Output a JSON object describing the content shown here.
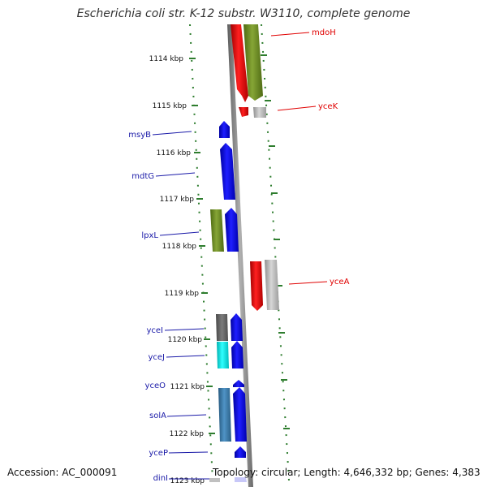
{
  "title": "Escherichia coli str. K-12 substr. W3110, complete genome",
  "accession": "Accession: AC_000091",
  "topology": "Topology: circular; Length: 4,646,332 bp; Genes: 4,383",
  "kbp_labels": [
    "1114 kbp",
    "1115 kbp",
    "1116 kbp",
    "1117 kbp",
    "1118 kbp",
    "1119 kbp",
    "1120 kbp",
    "1121 kbp",
    "1122 kbp",
    "1123 kbp"
  ],
  "colors": {
    "backbone": "#8c8c8c",
    "tick_dots": "#2e7d2e",
    "forward_blue": "#0a0ae6",
    "red": "#ee1111",
    "olive": "#6f8f23",
    "gray_feature": "#b8b8b8",
    "dark_gray_feature": "#6d6d6d",
    "cyan": "#13e6e6",
    "steel_blue": "#3d7fb0",
    "right_label": "#e00000",
    "left_label": "#1a1aa8"
  },
  "genes_right": [
    {
      "name": "mdoH",
      "color_key": "red"
    },
    {
      "name": "yceK",
      "color_key": "red"
    },
    {
      "name": "yceA",
      "color_key": "red"
    }
  ],
  "genes_left": [
    {
      "name": "msyB"
    },
    {
      "name": "mdtG"
    },
    {
      "name": "lpxL"
    },
    {
      "name": "yceI"
    },
    {
      "name": "yceJ"
    },
    {
      "name": "yceO"
    },
    {
      "name": "solA"
    },
    {
      "name": "yceP"
    },
    {
      "name": "dinI"
    }
  ]
}
